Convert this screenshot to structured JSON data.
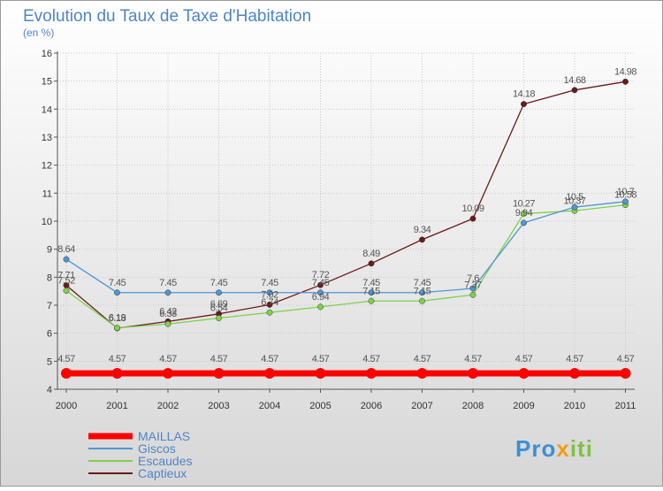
{
  "chart_data": {
    "type": "line",
    "title": "Evolution du Taux de Taxe d'Habitation",
    "subtitle": "(en %)",
    "x": [
      "2000",
      "2001",
      "2002",
      "2003",
      "2004",
      "2005",
      "2006",
      "2007",
      "2008",
      "2009",
      "2010",
      "2011"
    ],
    "ylim": [
      4,
      16
    ],
    "yticks": [
      "4",
      "5",
      "6",
      "7",
      "8",
      "9",
      "10",
      "11",
      "12",
      "13",
      "14",
      "15",
      "16"
    ],
    "grid": "horizontal dotted",
    "legend_position": "bottom-left",
    "series": [
      {
        "name": "MAILLAS",
        "color": "#ff0000",
        "values": [
          4.57,
          4.57,
          4.57,
          4.57,
          4.57,
          4.57,
          4.57,
          4.57,
          4.57,
          4.57,
          4.57,
          4.57
        ],
        "labels": [
          "4.57",
          "4.57",
          "4.57",
          "4.57",
          "4.57",
          "4.57",
          "4.57",
          "4.57",
          "4.57",
          "4.57",
          "4.57",
          "4.57"
        ]
      },
      {
        "name": "Giscos",
        "color": "#4f96d2",
        "values": [
          8.64,
          7.45,
          7.45,
          7.45,
          7.45,
          7.45,
          7.45,
          7.45,
          7.6,
          9.94,
          10.5,
          10.7
        ],
        "labels": [
          "8.64",
          "7.45",
          "7.45",
          "7.45",
          "7.45",
          "7.45",
          "7.45",
          "7.45",
          "7.6",
          "9.94",
          "10.5",
          "10.7"
        ]
      },
      {
        "name": "Escaudes",
        "color": "#7ed14a",
        "values": [
          7.52,
          6.19,
          6.33,
          6.54,
          6.74,
          6.94,
          7.15,
          7.15,
          7.37,
          10.27,
          10.37,
          10.58
        ],
        "labels": [
          "7.52",
          "6.19",
          "6.33",
          "6.54",
          "6.74",
          "6.94",
          "7.15",
          "7.15",
          "7.37",
          "10.27",
          "10.37",
          "10.58"
        ]
      },
      {
        "name": "Captieux",
        "color": "#6a1a1a",
        "values": [
          7.71,
          6.18,
          6.42,
          6.69,
          7.02,
          7.72,
          8.49,
          9.34,
          10.09,
          14.18,
          14.68,
          14.98
        ],
        "labels": [
          "7.71",
          "6.18",
          "6.42",
          "6.69",
          "7.02",
          "7.72",
          "8.49",
          "9.34",
          "10.09",
          "14.18",
          "14.68",
          "14.98"
        ]
      }
    ]
  },
  "logo": {
    "text": "Proxiti"
  }
}
